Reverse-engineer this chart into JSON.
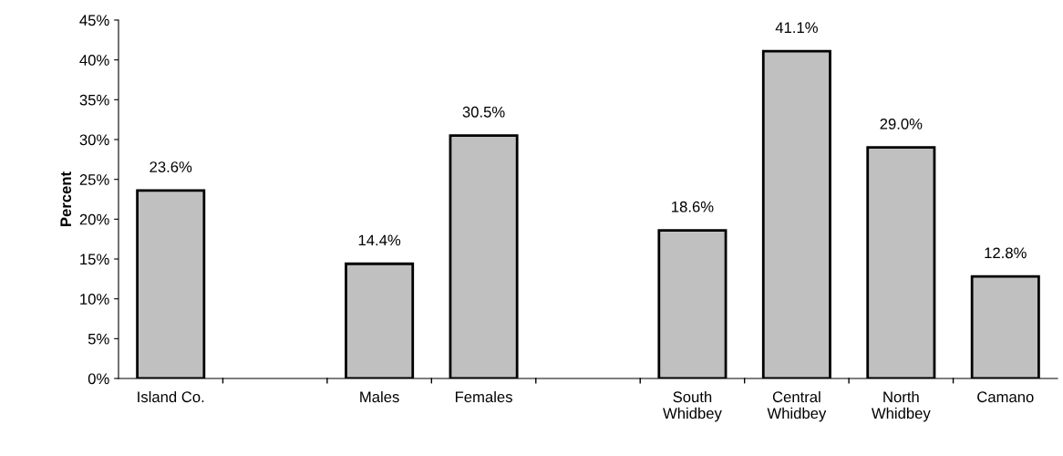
{
  "chart_data": {
    "type": "bar",
    "ylabel": "Percent",
    "categories": [
      "Island Co.",
      null,
      "Males",
      "Females",
      null,
      "South\nWhidbey",
      "Central\nWhidbey",
      "North\nWhidbey",
      "Camano"
    ],
    "values": [
      23.6,
      null,
      14.4,
      30.5,
      null,
      18.6,
      41.1,
      29.0,
      12.8
    ],
    "value_labels": [
      "23.6%",
      null,
      "14.4%",
      "30.5%",
      null,
      "18.6%",
      "41.1%",
      "29.0%",
      "12.8%"
    ],
    "color": "#c0c0c0",
    "ylim": [
      0,
      45
    ],
    "yticks": [
      {
        "value": 0,
        "label": "0%"
      },
      {
        "value": 5,
        "label": "5%"
      },
      {
        "value": 10,
        "label": "10%"
      },
      {
        "value": 15,
        "label": "15%"
      },
      {
        "value": 20,
        "label": "20%"
      },
      {
        "value": 25,
        "label": "25%"
      },
      {
        "value": 30,
        "label": "30%"
      },
      {
        "value": 35,
        "label": "35%"
      },
      {
        "value": 40,
        "label": "40%"
      },
      {
        "value": 45,
        "label": "45%"
      }
    ],
    "grid": false,
    "legend": false
  }
}
